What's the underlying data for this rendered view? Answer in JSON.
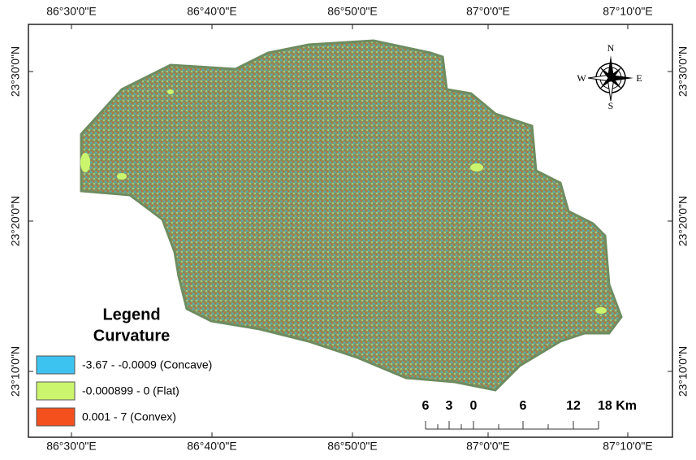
{
  "map": {
    "top_labels": [
      "86°30'0\"E",
      "86°40'0\"E",
      "86°50'0\"E",
      "87°0'0\"E",
      "87°10'0\"E"
    ],
    "bottom_labels": [
      "86°30'0\"E",
      "86°40'0\"E",
      "86°50'0\"E",
      "87°0'0\"E",
      "87°10'0\"E"
    ],
    "left_labels": [
      "23°30'0\"N",
      "23°20'0\"N",
      "23°10'0\"N"
    ],
    "right_labels": [
      "23°30'0\"N",
      "23°20'0\"N",
      "23°10'0\"N"
    ],
    "north_arrow": {
      "n": "N",
      "s": "S",
      "e": "E",
      "w": "W"
    },
    "legend": {
      "title": "Legend",
      "subtitle": "Curvature",
      "items": [
        {
          "label": "-3.67 - -0.0009 (Concave)",
          "color": "#3cc3f0"
        },
        {
          "label": "-0.000899 - 0 (Flat)",
          "color": "#ccf56e"
        },
        {
          "label": "0.001 - 7 (Convex)",
          "color": "#f4501e"
        }
      ]
    },
    "scale_bar": [
      "6",
      "3",
      "0",
      "6",
      "12",
      "18 Km"
    ]
  }
}
